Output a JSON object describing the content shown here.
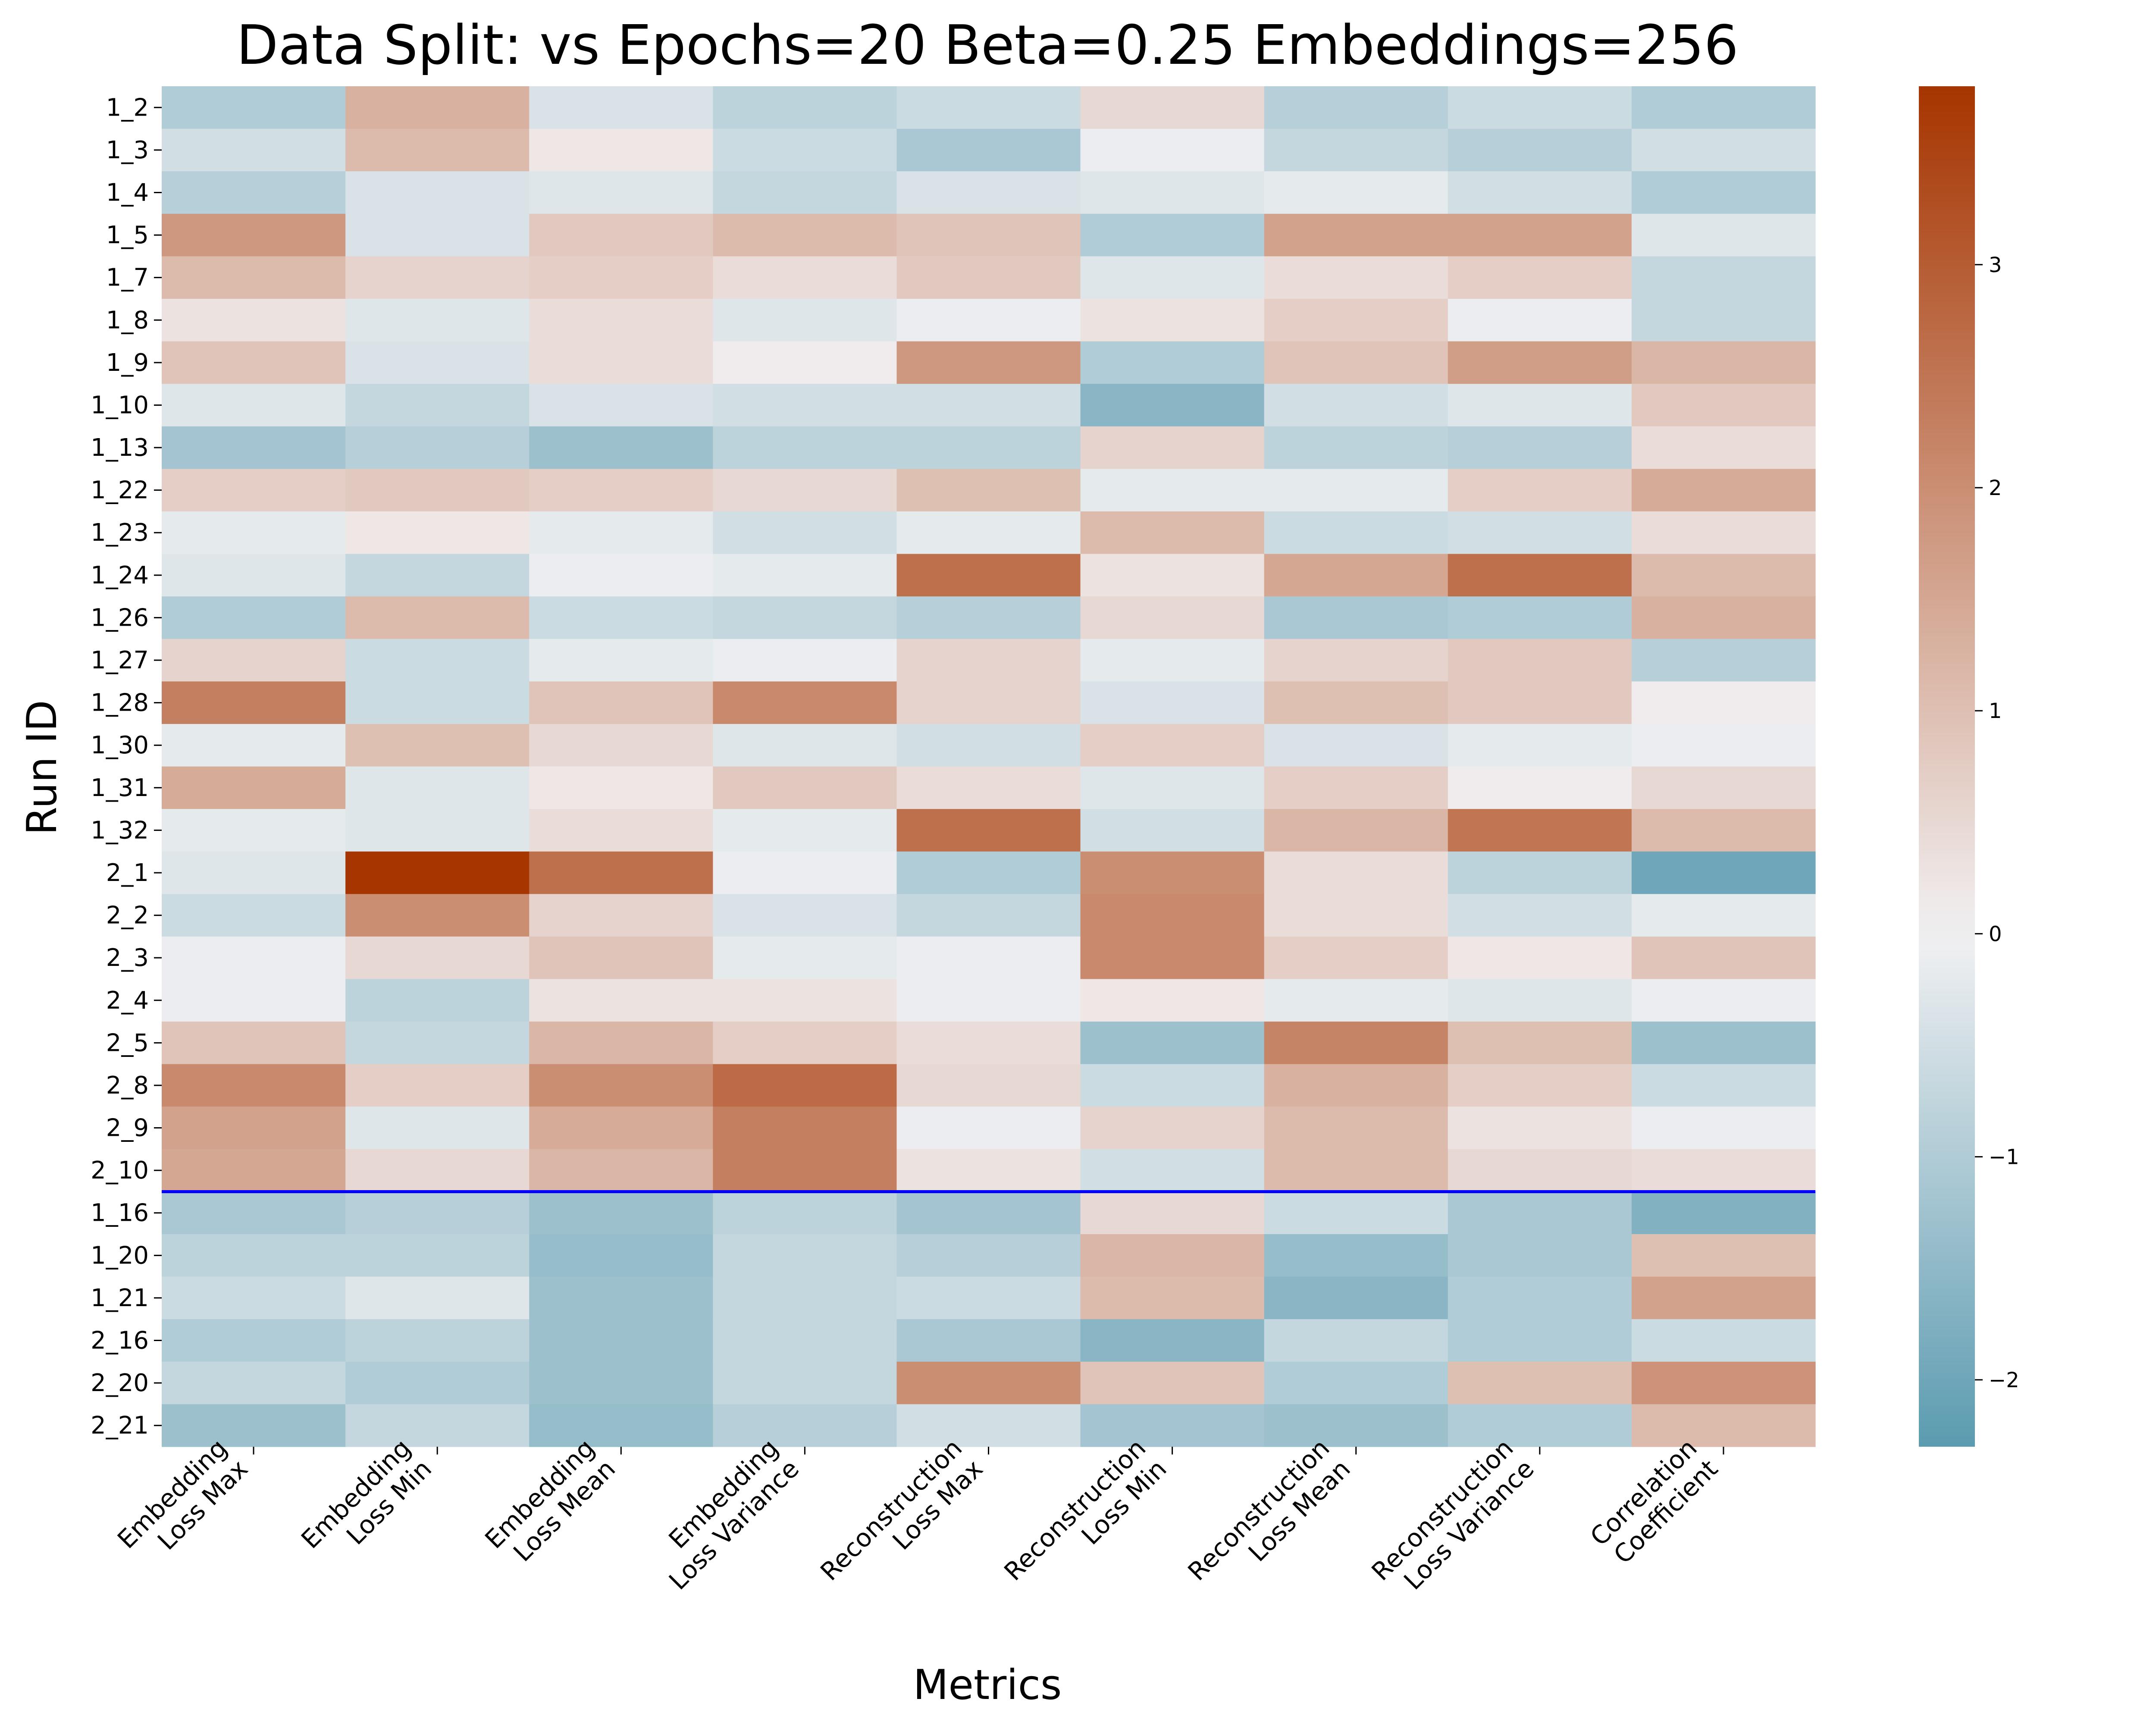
{
  "chart_data": {
    "type": "heatmap",
    "title": "Data Split: vs Epochs=20 Beta=0.25 Embeddings=256",
    "xlabel": "Metrics",
    "ylabel": "Run ID",
    "columns": [
      [
        "Embedding",
        "Loss Max"
      ],
      [
        "Embedding",
        "Loss Min"
      ],
      [
        "Embedding",
        "Loss Mean"
      ],
      [
        "Embedding",
        "Loss Variance"
      ],
      [
        "Reconstruction",
        "Loss Max"
      ],
      [
        "Reconstruction",
        "Loss Min"
      ],
      [
        "Reconstruction",
        "Loss Mean"
      ],
      [
        "Reconstruction",
        "Loss Variance"
      ],
      [
        "Correlation",
        "Coefficient"
      ]
    ],
    "rows": [
      "1_2",
      "1_3",
      "1_4",
      "1_5",
      "1_7",
      "1_8",
      "1_9",
      "1_10",
      "1_13",
      "1_22",
      "1_23",
      "1_24",
      "1_26",
      "1_27",
      "1_28",
      "1_30",
      "1_31",
      "1_32",
      "2_1",
      "2_2",
      "2_3",
      "2_4",
      "2_5",
      "2_8",
      "2_9",
      "2_10",
      "1_16",
      "1_20",
      "1_21",
      "2_16",
      "2_20",
      "2_21"
    ],
    "values": [
      [
        -1.0,
        1.3,
        -0.4,
        -0.8,
        -0.6,
        0.5,
        -0.9,
        -0.6,
        -1.0
      ],
      [
        -0.5,
        1.1,
        0.2,
        -0.6,
        -1.1,
        -0.1,
        -0.7,
        -0.9,
        -0.5
      ],
      [
        -0.9,
        -0.4,
        -0.3,
        -0.7,
        -0.4,
        -0.3,
        -0.2,
        -0.5,
        -1.0
      ],
      [
        1.8,
        -0.4,
        0.8,
        1.1,
        0.9,
        -1.0,
        1.6,
        1.6,
        -0.3
      ],
      [
        1.1,
        0.6,
        0.7,
        0.4,
        0.8,
        -0.3,
        0.4,
        0.7,
        -0.7
      ],
      [
        0.3,
        -0.3,
        0.4,
        -0.3,
        -0.1,
        0.3,
        0.7,
        -0.1,
        -0.7
      ],
      [
        0.9,
        -0.4,
        0.4,
        0.1,
        1.8,
        -1.0,
        0.9,
        1.7,
        1.2
      ],
      [
        -0.3,
        -0.7,
        -0.4,
        -0.5,
        -0.5,
        -1.6,
        -0.5,
        -0.3,
        0.8
      ],
      [
        -1.2,
        -0.9,
        -1.3,
        -0.8,
        -0.8,
        0.6,
        -0.8,
        -0.9,
        0.4
      ],
      [
        0.7,
        0.8,
        0.7,
        0.5,
        1.0,
        -0.2,
        -0.2,
        0.7,
        1.4
      ],
      [
        -0.2,
        0.2,
        -0.2,
        -0.5,
        -0.2,
        1.1,
        -0.6,
        -0.5,
        0.4
      ],
      [
        -0.3,
        -0.7,
        -0.1,
        -0.2,
        2.6,
        0.3,
        1.5,
        2.6,
        1.1
      ],
      [
        -1.0,
        1.1,
        -0.6,
        -0.7,
        -0.9,
        0.5,
        -1.1,
        -1.0,
        1.3
      ],
      [
        0.6,
        -0.6,
        -0.2,
        -0.1,
        0.6,
        -0.2,
        0.6,
        0.8,
        -0.9
      ],
      [
        2.3,
        -0.6,
        0.9,
        2.1,
        0.6,
        -0.4,
        1.0,
        0.8,
        0.1
      ],
      [
        -0.2,
        1.0,
        0.5,
        -0.3,
        -0.5,
        0.7,
        -0.4,
        -0.2,
        -0.1
      ],
      [
        1.4,
        -0.3,
        0.2,
        0.8,
        0.4,
        -0.3,
        0.7,
        0.1,
        0.5
      ],
      [
        -0.2,
        -0.3,
        0.4,
        -0.2,
        2.6,
        -0.5,
        1.2,
        2.5,
        1.1
      ],
      [
        -0.3,
        3.8,
        2.6,
        -0.1,
        -1.0,
        2.0,
        0.4,
        -0.8,
        -2.0
      ],
      [
        -0.6,
        2.0,
        0.6,
        -0.4,
        -0.7,
        2.1,
        0.4,
        -0.5,
        -0.2
      ],
      [
        -0.1,
        0.5,
        0.9,
        -0.2,
        -0.1,
        2.1,
        0.7,
        0.2,
        0.9
      ],
      [
        -0.1,
        -0.8,
        0.3,
        0.3,
        -0.1,
        0.2,
        -0.2,
        -0.3,
        -0.1
      ],
      [
        0.9,
        -0.7,
        1.2,
        0.7,
        0.4,
        -1.3,
        2.2,
        1.0,
        -1.3
      ],
      [
        2.1,
        0.7,
        2.0,
        2.7,
        0.5,
        -0.6,
        1.3,
        0.7,
        -0.6
      ],
      [
        1.6,
        -0.3,
        1.4,
        2.3,
        -0.1,
        0.6,
        1.1,
        0.3,
        -0.1
      ],
      [
        1.5,
        0.5,
        1.2,
        2.3,
        0.3,
        -0.5,
        1.1,
        0.5,
        0.4
      ],
      [
        -1.1,
        -0.9,
        -1.3,
        -0.8,
        -1.2,
        0.5,
        -0.6,
        -1.1,
        -1.7
      ],
      [
        -0.8,
        -0.8,
        -1.4,
        -0.7,
        -0.9,
        1.2,
        -1.4,
        -1.1,
        1.0
      ],
      [
        -0.6,
        -0.3,
        -1.3,
        -0.7,
        -0.6,
        1.1,
        -1.6,
        -1.0,
        1.6
      ],
      [
        -1.0,
        -0.8,
        -1.3,
        -0.7,
        -1.1,
        -1.6,
        -0.7,
        -1.0,
        -0.6
      ],
      [
        -0.7,
        -1.0,
        -1.3,
        -0.7,
        2.0,
        0.9,
        -1.0,
        1.0,
        1.9
      ],
      [
        -1.3,
        -0.7,
        -1.4,
        -0.9,
        -0.5,
        -1.2,
        -1.3,
        -1.0,
        1.1
      ]
    ],
    "separator_after_row": "2_10",
    "separator_color": "#0000ff",
    "vmin": -2.3,
    "vmax": 3.8,
    "colormap": {
      "low": "#5b9bb0",
      "mid": "#f2f1f3",
      "high": "#a63500"
    },
    "colorbar_ticks": [
      -2,
      -1,
      0,
      1,
      2,
      3
    ],
    "colorbar_tick_labels": [
      "−2",
      "−1",
      "0",
      "1",
      "2",
      "3"
    ]
  }
}
